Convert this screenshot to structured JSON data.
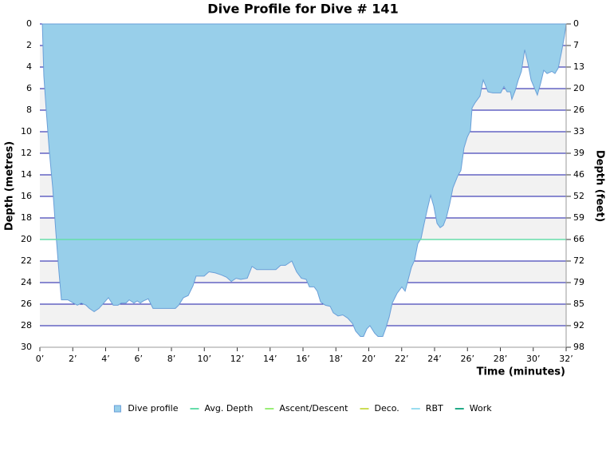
{
  "chart_data": {
    "type": "area",
    "title": "Dive Profile for Dive # 141",
    "y_label": "Depth (metres)",
    "y2_label": "Depth (feet)",
    "x_label": "Time (minutes)",
    "y_inverted": true,
    "xlim": [
      0,
      32
    ],
    "xticks": [
      {
        "value": 0,
        "label": "0’"
      },
      {
        "value": 2,
        "label": "2’"
      },
      {
        "value": 4,
        "label": "4’"
      },
      {
        "value": 6,
        "label": "6’"
      },
      {
        "value": 8,
        "label": "8’"
      },
      {
        "value": 10,
        "label": "10’"
      },
      {
        "value": 12,
        "label": "12’"
      },
      {
        "value": 14,
        "label": "14’"
      },
      {
        "value": 16,
        "label": "16’"
      },
      {
        "value": 18,
        "label": "18’"
      },
      {
        "value": 20,
        "label": "20’"
      },
      {
        "value": 22,
        "label": "22’"
      },
      {
        "value": 24,
        "label": "24’"
      },
      {
        "value": 26,
        "label": "26’"
      },
      {
        "value": 28,
        "label": "28’"
      },
      {
        "value": 30,
        "label": "30’"
      },
      {
        "value": 32,
        "label": "32’"
      }
    ],
    "ylim": [
      0,
      30
    ],
    "yticks": [
      0,
      2,
      4,
      6,
      8,
      10,
      12,
      14,
      16,
      18,
      20,
      22,
      24,
      26,
      28,
      30
    ],
    "y2lim": [
      0,
      98.43
    ],
    "y2ticks": [
      0,
      {
        "value": 6.56,
        "label": "7"
      },
      {
        "value": 13.12,
        "label": "13"
      },
      {
        "value": 19.69,
        "label": "20"
      },
      {
        "value": 26.25,
        "label": "26"
      },
      {
        "value": 32.81,
        "label": "33"
      },
      {
        "value": 39.37,
        "label": "39"
      },
      {
        "value": 45.93,
        "label": "46"
      },
      {
        "value": 52.49,
        "label": "52"
      },
      {
        "value": 59.06,
        "label": "59"
      },
      {
        "value": 65.62,
        "label": "66"
      },
      {
        "value": 72.18,
        "label": "72"
      },
      {
        "value": 78.74,
        "label": "79"
      },
      {
        "value": 85.3,
        "label": "85"
      },
      {
        "value": 91.86,
        "label": "92"
      },
      {
        "value": 98.43,
        "label": "98"
      }
    ],
    "grid": true,
    "legend": "bottom",
    "series": [
      {
        "name": "Dive profile",
        "color": "#98cfea",
        "x": [
          0.15,
          0.24,
          0.39,
          0.58,
          0.78,
          0.97,
          1.16,
          1.31,
          1.7,
          2.04,
          2.28,
          2.52,
          2.81,
          3.01,
          3.3,
          3.59,
          3.88,
          4.17,
          4.46,
          4.75,
          4.95,
          5.24,
          5.43,
          5.72,
          5.92,
          6.11,
          6.3,
          6.59,
          6.88,
          7.27,
          8.24,
          8.44,
          8.73,
          9.02,
          9.31,
          9.5,
          9.99,
          10.28,
          10.67,
          11.05,
          11.35,
          11.64,
          11.93,
          12.22,
          12.61,
          12.9,
          13.19,
          14.35,
          14.64,
          14.93,
          15.32,
          15.61,
          15.9,
          16.19,
          16.39,
          16.68,
          16.87,
          17.07,
          17.36,
          17.65,
          17.84,
          18.13,
          18.42,
          18.72,
          19.01,
          19.2,
          19.49,
          19.68,
          19.88,
          20.07,
          20.36,
          20.56,
          20.85,
          21.04,
          21.24,
          21.43,
          21.72,
          22.01,
          22.21,
          22.4,
          22.59,
          22.79,
          22.98,
          23.18,
          23.37,
          23.56,
          23.76,
          23.95,
          24.15,
          24.34,
          24.53,
          24.73,
          24.92,
          25.12,
          25.41,
          25.6,
          25.79,
          25.99,
          26.18,
          26.28,
          26.47,
          26.76,
          26.96,
          27.25,
          27.54,
          28.02,
          28.22,
          28.41,
          28.61,
          28.7,
          28.9,
          29.09,
          29.28,
          29.48,
          29.67,
          29.87,
          30.06,
          30.25,
          30.45,
          30.64,
          30.84,
          31.13,
          31.32,
          31.52,
          31.71,
          31.9,
          32.0
        ],
        "values": [
          0,
          4.8,
          8.1,
          11.9,
          15.2,
          19.3,
          23.0,
          25.6,
          25.6,
          25.9,
          26.1,
          25.9,
          26.1,
          26.4,
          26.7,
          26.4,
          25.9,
          25.4,
          26.1,
          26.1,
          25.9,
          25.9,
          25.6,
          25.9,
          25.7,
          25.9,
          25.7,
          25.5,
          26.4,
          26.4,
          26.4,
          26.1,
          25.4,
          25.2,
          24.3,
          23.4,
          23.4,
          23.0,
          23.1,
          23.3,
          23.5,
          23.9,
          23.6,
          23.7,
          23.6,
          22.5,
          22.8,
          22.8,
          22.4,
          22.4,
          22.0,
          23.0,
          23.6,
          23.7,
          24.4,
          24.4,
          24.8,
          25.8,
          26.1,
          26.2,
          26.8,
          27.1,
          27.0,
          27.3,
          27.8,
          28.5,
          29.0,
          29.0,
          28.3,
          28.0,
          28.7,
          29.0,
          29.0,
          28.2,
          27.2,
          25.9,
          25.0,
          24.4,
          24.8,
          23.7,
          22.6,
          21.9,
          20.4,
          19.9,
          18.5,
          17.2,
          15.9,
          16.9,
          18.5,
          18.9,
          18.7,
          17.9,
          16.7,
          15.2,
          14.1,
          13.6,
          11.5,
          10.5,
          9.9,
          7.8,
          7.3,
          6.7,
          5.2,
          6.3,
          6.4,
          6.4,
          5.8,
          6.3,
          6.3,
          7.0,
          6.2,
          5.2,
          4.4,
          2.4,
          3.6,
          5.2,
          5.9,
          6.6,
          5.5,
          4.3,
          4.6,
          4.4,
          4.6,
          4.1,
          2.7,
          1.1,
          0
        ]
      },
      {
        "name": "Avg. Depth",
        "color": "#66ddaa",
        "x": [
          0,
          32
        ],
        "values": [
          20,
          20
        ]
      },
      {
        "name": "Ascent/Descent",
        "color": "#99ee77"
      },
      {
        "name": "Deco.",
        "color": "#ccdd55"
      },
      {
        "name": "RBT",
        "color": "#99ddf0"
      },
      {
        "name": "Work",
        "color": "#22aa88"
      }
    ]
  }
}
